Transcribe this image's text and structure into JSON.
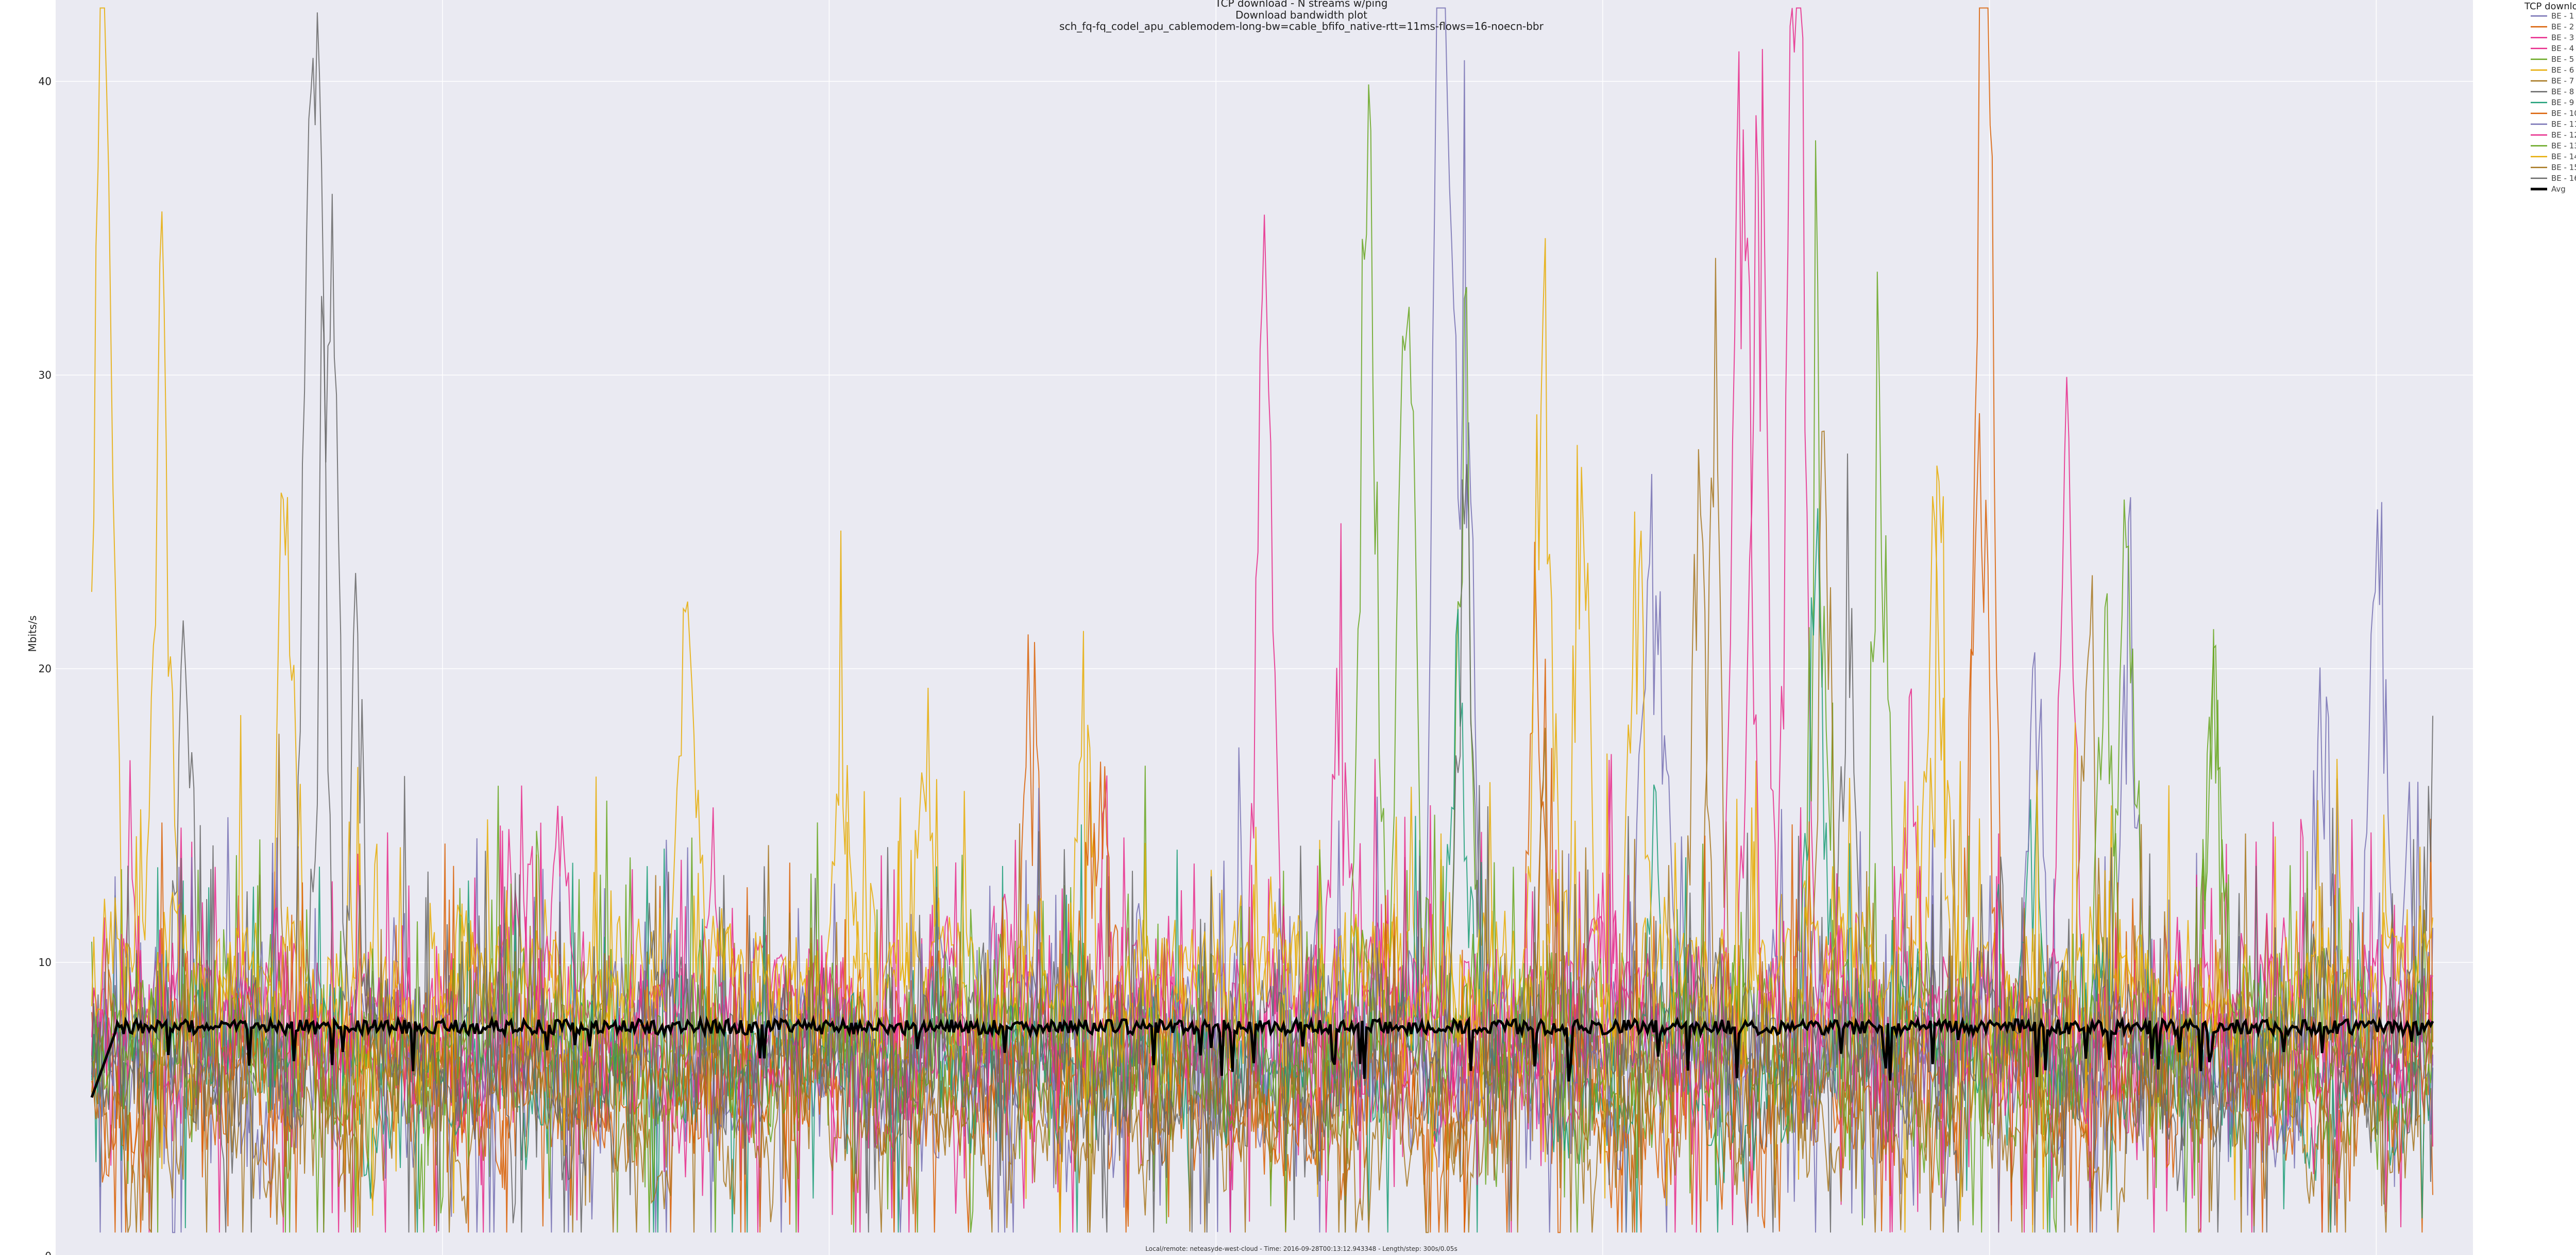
{
  "chart_data": {
    "type": "line",
    "title_lines": [
      "TCP download - N streams w/ping",
      "Download bandwidth plot",
      "sch_fq-fq_codel_apu_cablemodem-long-bw=cable_bfifo_native-rtt=11ms-flows=16-noecn-bbr"
    ],
    "ylabel": "Mbits/s",
    "xlabel": "",
    "ylim": [
      0,
      42.5
    ],
    "yticks": [
      0,
      10,
      20,
      30,
      40
    ],
    "xlim": [
      0,
      300
    ],
    "grid": true,
    "background": "#eaeaf2",
    "legend": {
      "title": "TCP download",
      "placement": "top-right-outside",
      "entries": [
        {
          "name": "BE - 1",
          "color": "#7570b3"
        },
        {
          "name": "BE - 2",
          "color": "#d95f02"
        },
        {
          "name": "BE - 3",
          "color": "#e7298a"
        },
        {
          "name": "BE - 4",
          "color": "#e7298a"
        },
        {
          "name": "BE - 5",
          "color": "#66a61e"
        },
        {
          "name": "BE - 6",
          "color": "#e6ab02"
        },
        {
          "name": "BE - 7",
          "color": "#a6761d"
        },
        {
          "name": "BE - 8",
          "color": "#666666"
        },
        {
          "name": "BE - 9",
          "color": "#1b9e77"
        },
        {
          "name": "BE - 10",
          "color": "#d95f02"
        },
        {
          "name": "BE - 11",
          "color": "#7570b3"
        },
        {
          "name": "BE - 12",
          "color": "#e7298a"
        },
        {
          "name": "BE - 13",
          "color": "#66a61e"
        },
        {
          "name": "BE - 14",
          "color": "#e6ab02"
        },
        {
          "name": "BE - 15",
          "color": "#a6761d"
        },
        {
          "name": "BE - 16",
          "color": "#666666"
        },
        {
          "name": "Avg",
          "color": "#000000"
        }
      ]
    },
    "series": [
      {
        "name": "BE - 1",
        "color": "#7570b3",
        "base": 6.5,
        "spikes": [
          [
            173,
            38
          ],
          [
            176,
            40
          ],
          [
            293,
            30
          ],
          [
            261,
            29
          ],
          [
            303,
            22
          ],
          [
            173,
            41
          ]
        ]
      },
      {
        "name": "BE - 2",
        "color": "#d95f02",
        "base": 5.5,
        "spikes": [
          [
            242,
            36
          ],
          [
            243,
            40
          ],
          [
            121,
            17
          ],
          [
            120,
            16
          ],
          [
            185,
            25
          ]
        ]
      },
      {
        "name": "BE - 3",
        "color": "#e7298a",
        "base": 7.0,
        "spikes": [
          [
            150,
            28
          ],
          [
            151,
            27
          ],
          [
            218,
            39
          ],
          [
            219,
            36
          ],
          [
            253,
            32
          ],
          [
            55,
            16
          ]
        ]
      },
      {
        "name": "BE - 4",
        "color": "#e7298a",
        "base": 8.0,
        "spikes": [
          [
            213,
            29
          ],
          [
            214,
            33
          ],
          [
            160,
            23
          ],
          [
            5,
            11
          ]
        ]
      },
      {
        "name": "BE - 5",
        "color": "#66a61e",
        "base": 7.0,
        "spikes": [
          [
            163,
            30
          ],
          [
            164,
            30
          ],
          [
            176,
            37
          ],
          [
            221,
            35
          ],
          [
            261,
            32
          ],
          [
            272,
            26
          ]
        ]
      },
      {
        "name": "BE - 6",
        "color": "#e6ab02",
        "base": 9.0,
        "spikes": [
          [
            1,
            37
          ],
          [
            2,
            35
          ],
          [
            9,
            42
          ],
          [
            25,
            32
          ],
          [
            186,
            38
          ],
          [
            236,
            31
          ],
          [
            127,
            25
          ]
        ]
      },
      {
        "name": "BE - 7",
        "color": "#a6761d",
        "base": 6.0,
        "spikes": [
          [
            208,
            35
          ],
          [
            222,
            33
          ],
          [
            256,
            23
          ],
          [
            24,
            15
          ]
        ]
      },
      {
        "name": "BE - 8",
        "color": "#666666",
        "base": 7.0,
        "spikes": [
          [
            12,
            26
          ],
          [
            28,
            38
          ],
          [
            29,
            42
          ],
          [
            34,
            24
          ],
          [
            225,
            28
          ]
        ]
      },
      {
        "name": "BE - 9",
        "color": "#1b9e77",
        "base": 6.5,
        "spikes": [
          [
            221,
            30
          ],
          [
            175,
            25
          ],
          [
            200,
            20
          ],
          [
            249,
            18
          ]
        ]
      },
      {
        "name": "BE - 10",
        "color": "#d95f02",
        "base": 6.0,
        "spikes": [
          [
            128,
            18
          ],
          [
            130,
            16
          ],
          [
            242,
            40
          ],
          [
            186,
            18
          ]
        ]
      },
      {
        "name": "BE - 11",
        "color": "#7570b3",
        "base": 7.0,
        "spikes": [
          [
            199,
            26
          ],
          [
            201,
            25
          ],
          [
            249,
            21
          ],
          [
            286,
            23
          ],
          [
            297,
            17
          ]
        ]
      },
      {
        "name": "BE - 12",
        "color": "#e7298a",
        "base": 7.5,
        "spikes": [
          [
            211,
            30
          ],
          [
            212,
            36
          ],
          [
            233,
            21
          ],
          [
            60,
            14
          ]
        ]
      },
      {
        "name": "BE - 13",
        "color": "#66a61e",
        "base": 7.0,
        "spikes": [
          [
            168,
            28
          ],
          [
            169,
            26
          ],
          [
            229,
            31
          ],
          [
            258,
            27
          ],
          [
            272,
            25
          ]
        ]
      },
      {
        "name": "BE - 14",
        "color": "#e6ab02",
        "base": 9.0,
        "spikes": [
          [
            76,
            21
          ],
          [
            77,
            19
          ],
          [
            96,
            19
          ],
          [
            107,
            17
          ],
          [
            191,
            33
          ],
          [
            198,
            29
          ],
          [
            237,
            30
          ]
        ]
      },
      {
        "name": "BE - 15",
        "color": "#a6761d",
        "base": 5.0,
        "spikes": [
          [
            206,
            34
          ],
          [
            186,
            17
          ],
          [
            2,
            11
          ]
        ]
      },
      {
        "name": "BE - 16",
        "color": "#666666",
        "base": 6.5,
        "spikes": [
          [
            30,
            30
          ],
          [
            31,
            26
          ],
          [
            176,
            31
          ],
          [
            300,
            23
          ]
        ]
      }
    ],
    "avg": {
      "name": "Avg",
      "color": "#000000",
      "level": 7.8
    }
  },
  "footer": {
    "text": "Local/remote: neteasyde-west-cloud - Time: 2016-09-28T00:13:12.943348 - Length/step: 300s/0.05s"
  }
}
